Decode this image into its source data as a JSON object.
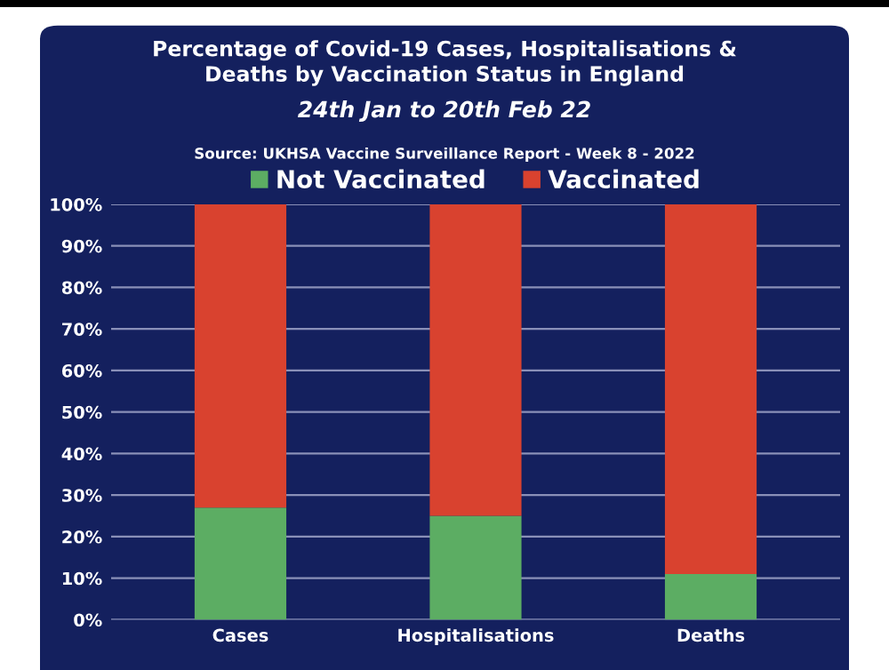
{
  "chart_data": {
    "type": "bar",
    "stacked": true,
    "title": "Percentage of Covid-19 Cases, Hospitalisations &\nDeaths by Vaccination Status in England",
    "subtitle": "24th Jan to 20th Feb 22",
    "annotations": [
      "Source: UKHSA Vaccine Surveillance Report - Week 8 - 2022"
    ],
    "categories": [
      "Cases",
      "Hospitalisations",
      "Deaths"
    ],
    "series": [
      {
        "name": "Not Vaccinated",
        "color": "#5cad63",
        "values": [
          27,
          25,
          11
        ]
      },
      {
        "name": "Vaccinated",
        "color": "#d9422f",
        "values": [
          73,
          75,
          89
        ]
      }
    ],
    "ylim": [
      0,
      100
    ],
    "yticks": [
      {
        "value": 0,
        "label": "0%"
      },
      {
        "value": 10,
        "label": "10%"
      },
      {
        "value": 20,
        "label": "20%"
      },
      {
        "value": 30,
        "label": "30%"
      },
      {
        "value": 40,
        "label": "40%"
      },
      {
        "value": 50,
        "label": "50%"
      },
      {
        "value": 60,
        "label": "60%"
      },
      {
        "value": 70,
        "label": "70%"
      },
      {
        "value": 80,
        "label": "80%"
      },
      {
        "value": 90,
        "label": "90%"
      },
      {
        "value": 100,
        "label": "100%"
      }
    ],
    "grid": "y",
    "legend": "top"
  }
}
